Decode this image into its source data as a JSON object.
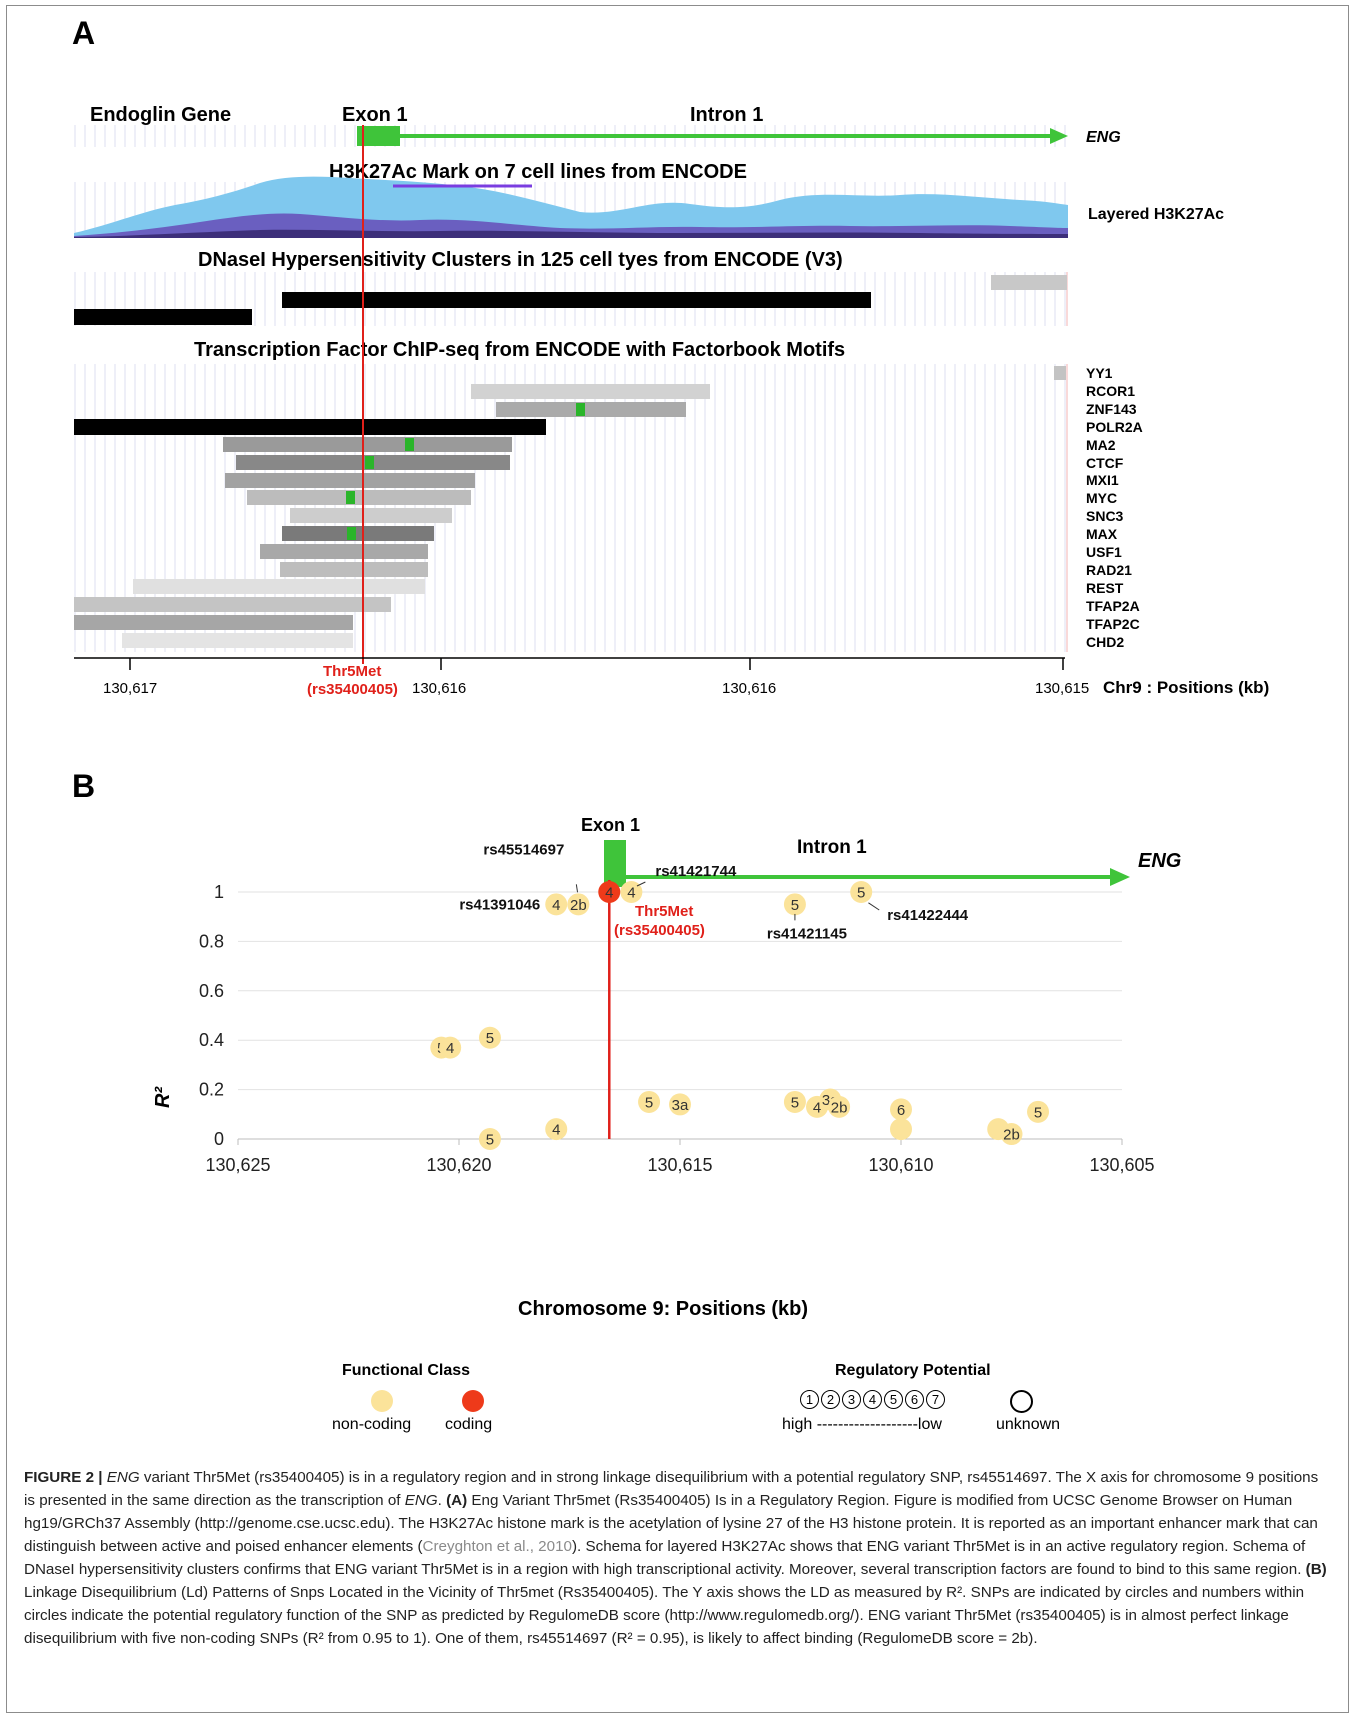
{
  "panelA": {
    "letter": "A",
    "gene_label": "Endoglin Gene",
    "exon_label": "Exon 1",
    "intron_label": "Intron 1",
    "gene_name": "ENG",
    "h3_title": "H3K27Ac Mark on 7 cell lines from ENCODE",
    "h3_side_label": "Layered H3K27Ac",
    "dnase_title": "DNaseI Hypersensitivity Clusters in 125 cell tyes from ENCODE (V3)",
    "tf_title": "Transcription Factor ChIP-seq from ENCODE with Factorbook Motifs",
    "tf_names": [
      "YY1",
      "RCOR1",
      "ZNF143",
      "POLR2A",
      "MA2",
      "CTCF",
      "MXI1",
      "MYC",
      "SNC3",
      "MAX",
      "USF1",
      "RAD21",
      "REST",
      "TFAP2A",
      "TFAP2C",
      "CHD2"
    ],
    "variant_label_1": "Thr5Met",
    "variant_label_2": "(rs35400405)",
    "ticks": [
      "130,617",
      "130,616",
      "130,616",
      "130,615"
    ],
    "axis_label": "Chr9 : Positions (kb)"
  },
  "panelB": {
    "letter": "B",
    "exon_label": "Exon 1",
    "intron_label": "Intron 1",
    "gene_name": "ENG",
    "variant_label_1": "Thr5Met",
    "variant_label_2": "(rs35400405)",
    "colors": {
      "noncoding": "#fbe39a",
      "coding": "#ee3a1a",
      "variant_line": "#e0201a",
      "gene": "#3fc43a"
    }
  },
  "chart_data": {
    "type": "scatter",
    "xlabel": "Chromosome 9: Positions (kb)",
    "ylabel": "R²",
    "xlim": [
      130625,
      130605
    ],
    "ylim": [
      0,
      1
    ],
    "x_ticks": [
      "130,625",
      "130,620",
      "130,615",
      "130,610",
      "130,605"
    ],
    "y_ticks": [
      "0",
      "0.2",
      "0.4",
      "0.6",
      "0.8",
      "1"
    ],
    "points": [
      {
        "x": 130620.4,
        "y": 0.37,
        "label": "5",
        "class": "non-coding"
      },
      {
        "x": 130620.2,
        "y": 0.37,
        "label": "4",
        "class": "non-coding"
      },
      {
        "x": 130619.3,
        "y": 0.41,
        "label": "5",
        "class": "non-coding"
      },
      {
        "x": 130619.3,
        "y": 0.0,
        "label": "5",
        "class": "non-coding"
      },
      {
        "x": 130617.8,
        "y": 0.95,
        "label": "4",
        "class": "non-coding",
        "rsid": "rs41391046"
      },
      {
        "x": 130617.3,
        "y": 0.95,
        "label": "2b",
        "class": "non-coding",
        "rsid": "rs45514697"
      },
      {
        "x": 130617.8,
        "y": 0.04,
        "label": "4",
        "class": "non-coding"
      },
      {
        "x": 130616.6,
        "y": 1.0,
        "label": "4",
        "class": "coding",
        "rsid": "rs35400405"
      },
      {
        "x": 130616.1,
        "y": 1.0,
        "label": "4",
        "class": "non-coding",
        "rsid": "rs41421744"
      },
      {
        "x": 130615.7,
        "y": 0.15,
        "label": "5",
        "class": "non-coding"
      },
      {
        "x": 130615.0,
        "y": 0.14,
        "label": "3a",
        "class": "non-coding"
      },
      {
        "x": 130612.4,
        "y": 0.95,
        "label": "5",
        "class": "non-coding",
        "rsid": "rs41421145"
      },
      {
        "x": 130612.4,
        "y": 0.15,
        "label": "5",
        "class": "non-coding"
      },
      {
        "x": 130611.9,
        "y": 0.13,
        "label": "4",
        "class": "non-coding"
      },
      {
        "x": 130611.6,
        "y": 0.16,
        "label": "3a",
        "class": "non-coding"
      },
      {
        "x": 130611.4,
        "y": 0.13,
        "label": "2b",
        "class": "non-coding"
      },
      {
        "x": 130610.9,
        "y": 1.0,
        "label": "5",
        "class": "non-coding",
        "rsid": "rs41422444"
      },
      {
        "x": 130610.0,
        "y": 0.12,
        "label": "6",
        "class": "non-coding"
      },
      {
        "x": 130610.0,
        "y": 0.04,
        "label": "",
        "class": "non-coding"
      },
      {
        "x": 130607.8,
        "y": 0.04,
        "label": "",
        "class": "non-coding"
      },
      {
        "x": 130607.5,
        "y": 0.02,
        "label": "2b",
        "class": "non-coding"
      },
      {
        "x": 130606.9,
        "y": 0.11,
        "label": "5",
        "class": "non-coding"
      }
    ],
    "rsid_labels": [
      "rs45514697",
      "rs41421744",
      "rs41391046",
      "rs41421145",
      "rs41422444"
    ]
  },
  "legend": {
    "functional_title": "Functional Class",
    "noncoding": "non-coding",
    "coding": "coding",
    "regulatory_title": "Regulatory Potential",
    "scores": [
      "1",
      "2",
      "3",
      "4",
      "5",
      "6",
      "7"
    ],
    "scale_text": "high -------------------low",
    "unknown": "unknown"
  },
  "caption": {
    "fig": "FIGURE 2 |",
    "gene1": "ENG",
    "t1": " variant Thr5Met (rs35400405) is in a regulatory region and in strong linkage disequilibrium with a potential regulatory SNP, rs45514697. The X axis for chromosome 9 positions is presented in the same direction as the transcription of ",
    "gene2": "ENG",
    "t2": ". ",
    "a_head": "(A)",
    "t3": " Eng Variant Thr5met (Rs35400405) Is in a Regulatory Region. Figure is modified from UCSC Genome Browser on Human hg19/GRCh37 Assembly (http://genome.cse.ucsc.edu). The H3K27Ac histone mark is the acetylation of lysine 27 of the H3 histone protein. It is reported as an important enhancer mark that can distinguish between active and poised enhancer elements (",
    "ref": "Creyghton et al., 2010",
    "t4": "). Schema for layered H3K27Ac shows that ENG variant Thr5Met is in an active regulatory region. Schema of DNaseI hypersensitivity clusters confirms that ENG variant Thr5Met is in a region with high transcriptional activity. Moreover, several transcription factors are found to bind to this same region. ",
    "b_head": "(B)",
    "t5": " Linkage Disequilibrium (Ld) Patterns of Snps Located in the Vicinity of Thr5met (Rs35400405). The Y axis shows the LD as measured by R². SNPs are indicated by circles and numbers within circles indicate the potential regulatory function of the SNP as predicted by RegulomeDB score (http://www.regulomedb.org/). ENG variant Thr5Met (rs35400405) is in almost perfect linkage disequilibrium with five non-coding SNPs (R² from 0.95 to 1). One of them, rs45514697 (R² = 0.95), is likely to affect binding (RegulomeDB score = 2b)."
  }
}
